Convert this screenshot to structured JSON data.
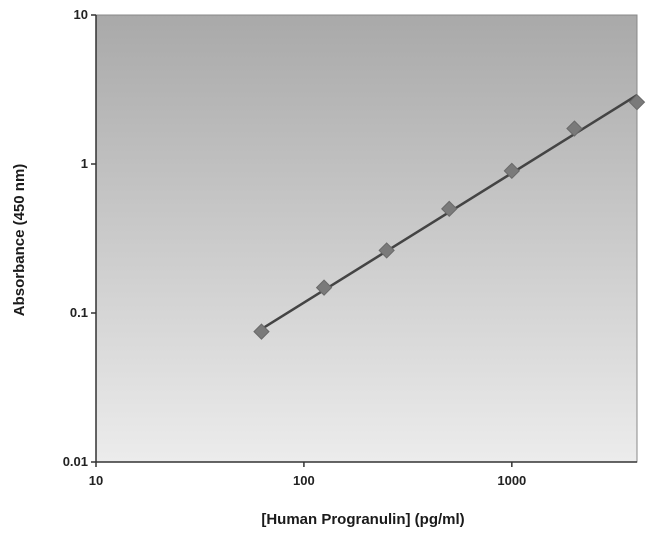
{
  "chart_data": {
    "type": "scatter",
    "title": "",
    "xlabel": "[Human Progranulin] (pg/ml)",
    "ylabel": "Absorbance (450 nm)",
    "xscale": "log",
    "yscale": "log",
    "xlim": [
      10,
      4000
    ],
    "ylim": [
      0.01,
      10
    ],
    "xticks": [
      "10",
      "100",
      "1000"
    ],
    "yticks": [
      "0.01",
      "0.1",
      "1",
      "10"
    ],
    "grid": false,
    "background": "gray gradient (dark top, light bottom)",
    "marker_color": "#7a7a7a",
    "line_color": "#444444",
    "series": [
      {
        "x": [
          62.5,
          125,
          250,
          500,
          1000,
          2000,
          4000
        ],
        "y": [
          0.075,
          0.148,
          0.263,
          0.5,
          0.9,
          1.73,
          2.6
        ],
        "marker": "diamond",
        "fit": "power-law trend line"
      }
    ],
    "fit_line": {
      "x": [
        62.5,
        4000
      ],
      "y": [
        0.078,
        2.9
      ]
    }
  }
}
